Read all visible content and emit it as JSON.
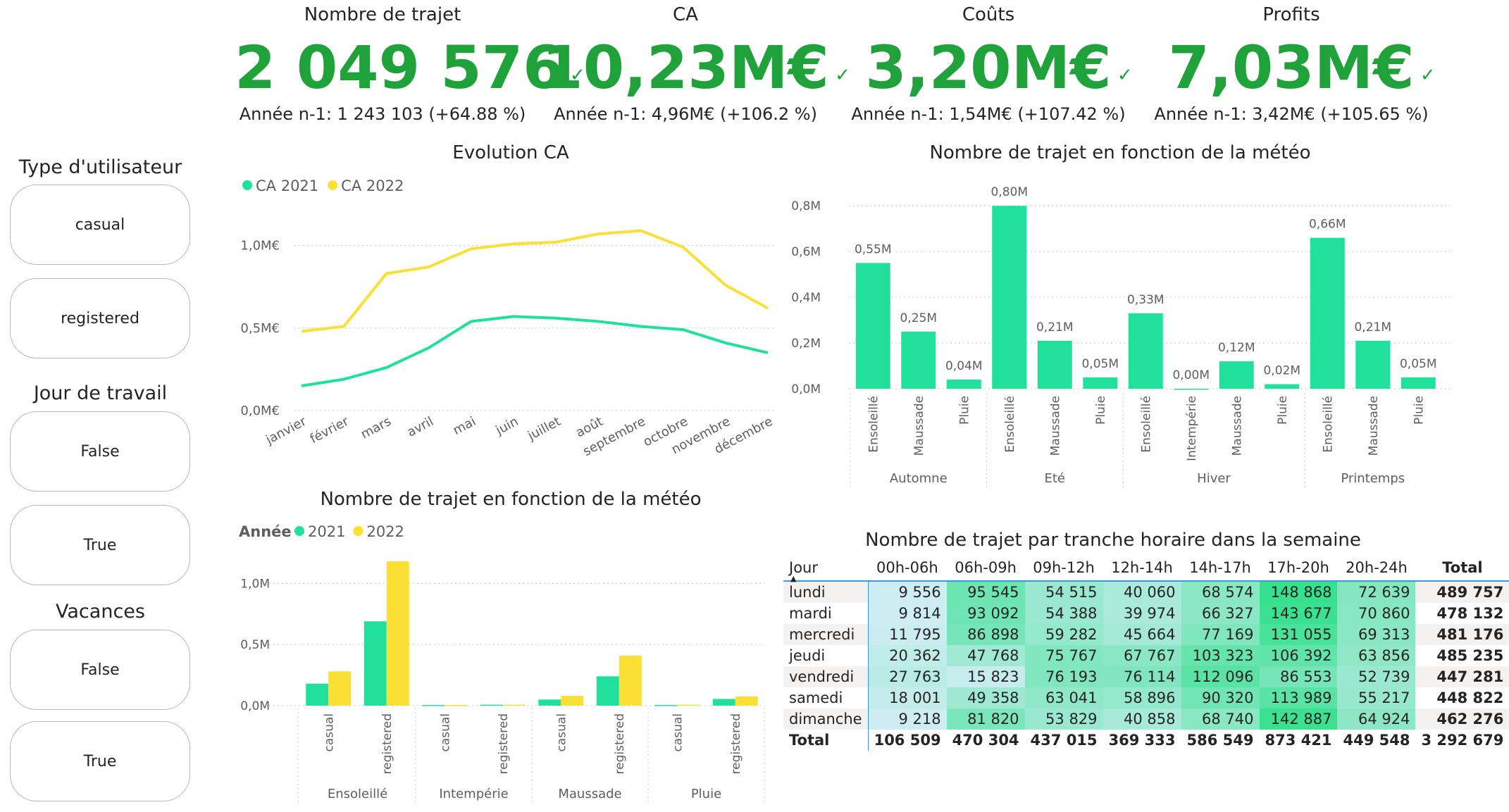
{
  "kpis": [
    {
      "title": "Nombre de trajet",
      "value": "2 049 576",
      "sub": "Année n-1: 1 243 103 (+64.88 %)"
    },
    {
      "title": "CA",
      "value": "10,23M€",
      "sub": "Année n-1: 4,96M€ (+106.2 %)"
    },
    {
      "title": "Coûts",
      "value": "3,20M€",
      "sub": "Année n-1: 1,54M€ (+107.42 %)"
    },
    {
      "title": "Profits",
      "value": "7,03M€",
      "sub": "Année n-1: 3,42M€ (+105.65 %)"
    }
  ],
  "slicers": [
    {
      "title": "Type d'utilisateur",
      "options": [
        "casual",
        "registered"
      ]
    },
    {
      "title": "Jour de travail",
      "options": [
        "False",
        "True"
      ]
    },
    {
      "title": "Vacances",
      "options": [
        "False",
        "True"
      ]
    }
  ],
  "colors": {
    "green": "#21e09c",
    "yellow": "#fae034",
    "kpi": "#1fa23a"
  },
  "chart_data": [
    {
      "type": "line",
      "title": "Evolution CA",
      "categories": [
        "janvier",
        "février",
        "mars",
        "avril",
        "mai",
        "juin",
        "juillet",
        "août",
        "septembre",
        "octobre",
        "novembre",
        "décembre"
      ],
      "series": [
        {
          "name": "CA 2021",
          "values": [
            0.15,
            0.19,
            0.26,
            0.38,
            0.54,
            0.57,
            0.56,
            0.54,
            0.51,
            0.49,
            0.41,
            0.35
          ]
        },
        {
          "name": "CA 2022",
          "values": [
            0.48,
            0.51,
            0.83,
            0.87,
            0.98,
            1.01,
            1.02,
            1.07,
            1.09,
            0.99,
            0.76,
            0.62
          ]
        }
      ],
      "yticks": [
        "0,0M€",
        "0,5M€",
        "1,0M€"
      ],
      "ylim": [
        0,
        1.25
      ],
      "legend": "top-left"
    },
    {
      "type": "bar",
      "title": "Nombre de trajet en fonction de la météo",
      "groups": [
        {
          "name": "Automne",
          "bars": [
            {
              "cat": "Ensoleillé",
              "value": 0.55,
              "label": "0,55M"
            },
            {
              "cat": "Maussade",
              "value": 0.25,
              "label": "0,25M"
            },
            {
              "cat": "Pluie",
              "value": 0.04,
              "label": "0,04M"
            }
          ]
        },
        {
          "name": "Eté",
          "bars": [
            {
              "cat": "Ensoleillé",
              "value": 0.8,
              "label": "0,80M"
            },
            {
              "cat": "Maussade",
              "value": 0.21,
              "label": "0,21M"
            },
            {
              "cat": "Pluie",
              "value": 0.05,
              "label": "0,05M"
            }
          ]
        },
        {
          "name": "Hiver",
          "bars": [
            {
              "cat": "Ensoleillé",
              "value": 0.33,
              "label": "0,33M"
            },
            {
              "cat": "Intempérie",
              "value": 0.0,
              "label": "0,00M"
            },
            {
              "cat": "Maussade",
              "value": 0.12,
              "label": "0,12M"
            },
            {
              "cat": "Pluie",
              "value": 0.02,
              "label": "0,02M"
            }
          ]
        },
        {
          "name": "Printemps",
          "bars": [
            {
              "cat": "Ensoleillé",
              "value": 0.66,
              "label": "0,66M"
            },
            {
              "cat": "Maussade",
              "value": 0.21,
              "label": "0,21M"
            },
            {
              "cat": "Pluie",
              "value": 0.05,
              "label": "0,05M"
            }
          ]
        }
      ],
      "yticks": [
        "0,0M",
        "0,2M",
        "0,4M",
        "0,6M",
        "0,8M"
      ],
      "ylim": [
        0,
        0.85
      ]
    },
    {
      "type": "bar",
      "title": "Nombre de trajet en fonction de la météo",
      "legend_title": "Année",
      "series_names": [
        "2021",
        "2022"
      ],
      "groups": [
        {
          "name": "Ensoleillé",
          "bars": [
            {
              "cat": "casual",
              "values": [
                0.18,
                0.28
              ]
            },
            {
              "cat": "registered",
              "values": [
                0.69,
                1.18
              ]
            }
          ]
        },
        {
          "name": "Intempérie",
          "bars": [
            {
              "cat": "casual",
              "values": [
                0.005,
                0.005
              ]
            },
            {
              "cat": "registered",
              "values": [
                0.008,
                0.008
              ]
            }
          ]
        },
        {
          "name": "Maussade",
          "bars": [
            {
              "cat": "casual",
              "values": [
                0.05,
                0.08
              ]
            },
            {
              "cat": "registered",
              "values": [
                0.24,
                0.41
              ]
            }
          ]
        },
        {
          "name": "Pluie",
          "bars": [
            {
              "cat": "casual",
              "values": [
                0.005,
                0.008
              ]
            },
            {
              "cat": "registered",
              "values": [
                0.055,
                0.075
              ]
            }
          ]
        }
      ],
      "yticks": [
        "0,0M",
        "0,5M",
        "1,0M"
      ],
      "ylim": [
        0,
        1.25
      ]
    },
    {
      "type": "table",
      "title": "Nombre de trajet par tranche horaire dans la semaine",
      "columns": [
        "Jour",
        "00h-06h",
        "06h-09h",
        "09h-12h",
        "12h-14h",
        "14h-17h",
        "17h-20h",
        "20h-24h",
        "Total"
      ],
      "rows": [
        {
          "day": "lundi",
          "cells": [
            "9 556",
            "95 545",
            "54 515",
            "40 060",
            "68 574",
            "148 868",
            "72 639"
          ],
          "values": [
            9556,
            95545,
            54515,
            40060,
            68574,
            148868,
            72639
          ],
          "total": "489 757"
        },
        {
          "day": "mardi",
          "cells": [
            "9 814",
            "93 092",
            "54 388",
            "39 974",
            "66 327",
            "143 677",
            "70 860"
          ],
          "values": [
            9814,
            93092,
            54388,
            39974,
            66327,
            143677,
            70860
          ],
          "total": "478 132"
        },
        {
          "day": "mercredi",
          "cells": [
            "11 795",
            "86 898",
            "59 282",
            "45 664",
            "77 169",
            "131 055",
            "69 313"
          ],
          "values": [
            11795,
            86898,
            59282,
            45664,
            77169,
            131055,
            69313
          ],
          "total": "481 176"
        },
        {
          "day": "jeudi",
          "cells": [
            "20 362",
            "47 768",
            "75 767",
            "67 767",
            "103 323",
            "106 392",
            "63 856"
          ],
          "values": [
            20362,
            47768,
            75767,
            67767,
            103323,
            106392,
            63856
          ],
          "total": "485 235"
        },
        {
          "day": "vendredi",
          "cells": [
            "27 763",
            "15 823",
            "76 193",
            "76 114",
            "112 096",
            "86 553",
            "52 739"
          ],
          "values": [
            27763,
            15823,
            76193,
            76114,
            112096,
            86553,
            52739
          ],
          "total": "447 281"
        },
        {
          "day": "samedi",
          "cells": [
            "18 001",
            "49 358",
            "63 041",
            "58 896",
            "90 320",
            "113 989",
            "55 217"
          ],
          "values": [
            18001,
            49358,
            63041,
            58896,
            90320,
            113989,
            55217
          ],
          "total": "448 822"
        },
        {
          "day": "dimanche",
          "cells": [
            "9 218",
            "81 820",
            "53 829",
            "40 858",
            "68 740",
            "142 887",
            "64 924"
          ],
          "values": [
            9218,
            81820,
            53829,
            40858,
            68740,
            142887,
            64924
          ],
          "total": "462 276"
        }
      ],
      "total_row": {
        "day": "Total",
        "cells": [
          "106 509",
          "470 304",
          "437 015",
          "369 333",
          "586 549",
          "873 421",
          "449 548"
        ],
        "total": "3 292 679"
      }
    }
  ]
}
